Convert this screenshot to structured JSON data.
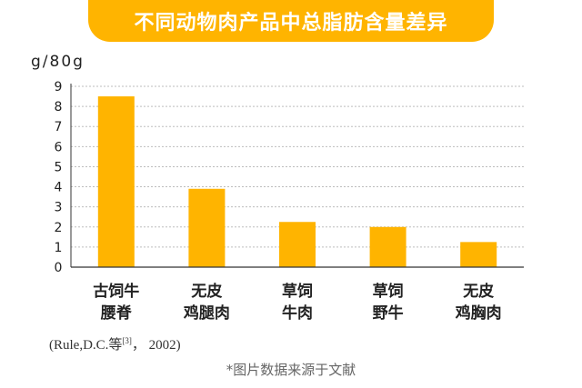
{
  "title": "不同动物肉产品中总脂肪含量差异",
  "source_main": "(Rule,D.C.等",
  "source_sup": "[3]",
  "source_tail": "， 2002)",
  "footnote": "*图片数据来源于文献",
  "chart_data": {
    "type": "bar",
    "ylabel": "g/80g",
    "xlabel": "",
    "ylim": [
      0,
      9
    ],
    "yticks": [
      0,
      1,
      2,
      3,
      4,
      5,
      6,
      7,
      8,
      9
    ],
    "grid": true,
    "categories": [
      [
        "古饲牛",
        "腰脊"
      ],
      [
        "无皮",
        "鸡腿肉"
      ],
      [
        "草饲",
        "牛肉"
      ],
      [
        "草饲",
        "野牛"
      ],
      [
        "无皮",
        "鸡胸肉"
      ]
    ],
    "values": [
      8.5,
      3.9,
      2.25,
      2.0,
      1.25
    ],
    "bar_color": "#ffb400"
  }
}
